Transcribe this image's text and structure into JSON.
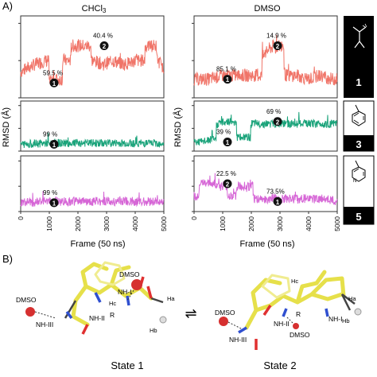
{
  "panel_a_label": "A)",
  "panel_b_label": "B)",
  "solvents": [
    "CHCl3",
    "DMSO"
  ],
  "y_axis_label": "RMSD (Å)",
  "x_axis_label": "Frame (50 ns)",
  "row_labels": [
    "1",
    "3",
    "5"
  ],
  "chart_data": [
    {
      "type": "line",
      "solvent": "CHCl3",
      "row": "1",
      "color": "#f07468",
      "ylim": [
        0,
        2.2
      ],
      "annotations": [
        {
          "state": "1",
          "percent": "59.5 %"
        },
        {
          "state": "2",
          "percent": "40.4 %"
        }
      ],
      "series": [
        {
          "x": [
            0,
            500,
            900,
            1000,
            1200,
            1500,
            1800,
            2000,
            2200,
            2500,
            2900,
            3200,
            3600,
            4000,
            4400,
            4800,
            5000
          ],
          "y": [
            0.7,
            0.9,
            1.0,
            0.4,
            0.5,
            1.0,
            1.4,
            1.4,
            1.4,
            1.0,
            0.9,
            1.0,
            0.9,
            1.0,
            1.4,
            1.0,
            0.8
          ]
        }
      ]
    },
    {
      "type": "line",
      "solvent": "DMSO",
      "row": "1",
      "color": "#f07468",
      "ylim": [
        0,
        2.2
      ],
      "annotations": [
        {
          "state": "1",
          "percent": "85.1 %"
        },
        {
          "state": "2",
          "percent": "14.9 %"
        }
      ],
      "series": [
        {
          "x": [
            0,
            500,
            1000,
            1500,
            2000,
            2200,
            2400,
            2600,
            2800,
            3200,
            3600,
            4000,
            4400,
            4800,
            5000
          ],
          "y": [
            0.5,
            0.5,
            0.6,
            0.6,
            0.6,
            0.6,
            1.1,
            1.3,
            1.4,
            0.6,
            0.6,
            0.5,
            0.6,
            0.5,
            0.5
          ]
        }
      ]
    },
    {
      "type": "line",
      "solvent": "CHCl3",
      "row": "3",
      "color": "#1aa37a",
      "ylim": [
        0,
        2.2
      ],
      "annotations": [
        {
          "state": "1",
          "percent": "99 %"
        }
      ],
      "series": [
        {
          "x": [
            0,
            1000,
            2000,
            3000,
            4000,
            5000
          ],
          "y": [
            0.3,
            0.35,
            0.35,
            0.35,
            0.35,
            0.35
          ]
        }
      ]
    },
    {
      "type": "line",
      "solvent": "DMSO",
      "row": "3",
      "color": "#1aa37a",
      "ylim": [
        0,
        2.2
      ],
      "annotations": [
        {
          "state": "1",
          "percent": "39 %"
        },
        {
          "state": "2",
          "percent": "69 %"
        }
      ],
      "series": [
        {
          "x": [
            0,
            300,
            600,
            800,
            1100,
            1400,
            1500,
            1800,
            2000,
            2500,
            3000,
            4000,
            5000
          ],
          "y": [
            0.4,
            0.4,
            0.5,
            1.2,
            1.3,
            1.3,
            0.6,
            0.6,
            1.2,
            1.2,
            1.2,
            1.2,
            1.2
          ]
        }
      ]
    },
    {
      "type": "line",
      "solvent": "CHCl3",
      "row": "5",
      "color": "#d666d6",
      "ylim": [
        0,
        2.2
      ],
      "annotations": [
        {
          "state": "1",
          "percent": "99 %"
        }
      ],
      "series": [
        {
          "x": [
            0,
            1000,
            2000,
            3000,
            4000,
            5000
          ],
          "y": [
            0.35,
            0.4,
            0.4,
            0.4,
            0.4,
            0.4
          ]
        }
      ]
    },
    {
      "type": "line",
      "solvent": "DMSO",
      "row": "5",
      "color": "#d666d6",
      "ylim": [
        0,
        2.2
      ],
      "annotations": [
        {
          "state": "2",
          "percent": "22.5 %"
        },
        {
          "state": "1",
          "percent": "73.5%"
        }
      ],
      "series": [
        {
          "x": [
            0,
            200,
            700,
            900,
            1200,
            1300,
            1500,
            1800,
            2100,
            2600,
            3000,
            3500,
            4000,
            4500,
            5000
          ],
          "y": [
            0.6,
            1.1,
            1.1,
            1.0,
            0.6,
            0.6,
            1.0,
            1.0,
            0.5,
            0.5,
            0.5,
            0.5,
            0.5,
            0.5,
            0.4
          ]
        }
      ]
    }
  ],
  "x_ticks": [
    "0",
    "1000",
    "2000",
    "3000",
    "4000",
    "5000"
  ],
  "y_ticks": [
    "0",
    "1",
    "2"
  ],
  "structure_labels": {
    "state1": [
      "DMSO",
      "DMSO",
      "NH-III",
      "NH-II",
      "NH-I",
      "R",
      "Hc",
      "Ha",
      "Hb"
    ],
    "state2": [
      "DMSO",
      "NH-III",
      "NH-II",
      "DMSO",
      "NH-I",
      "R",
      "Hc",
      "Ha",
      "Hb"
    ]
  },
  "state_labels": [
    "State 1",
    "State 2"
  ],
  "equilibrium_symbol": "⇌"
}
